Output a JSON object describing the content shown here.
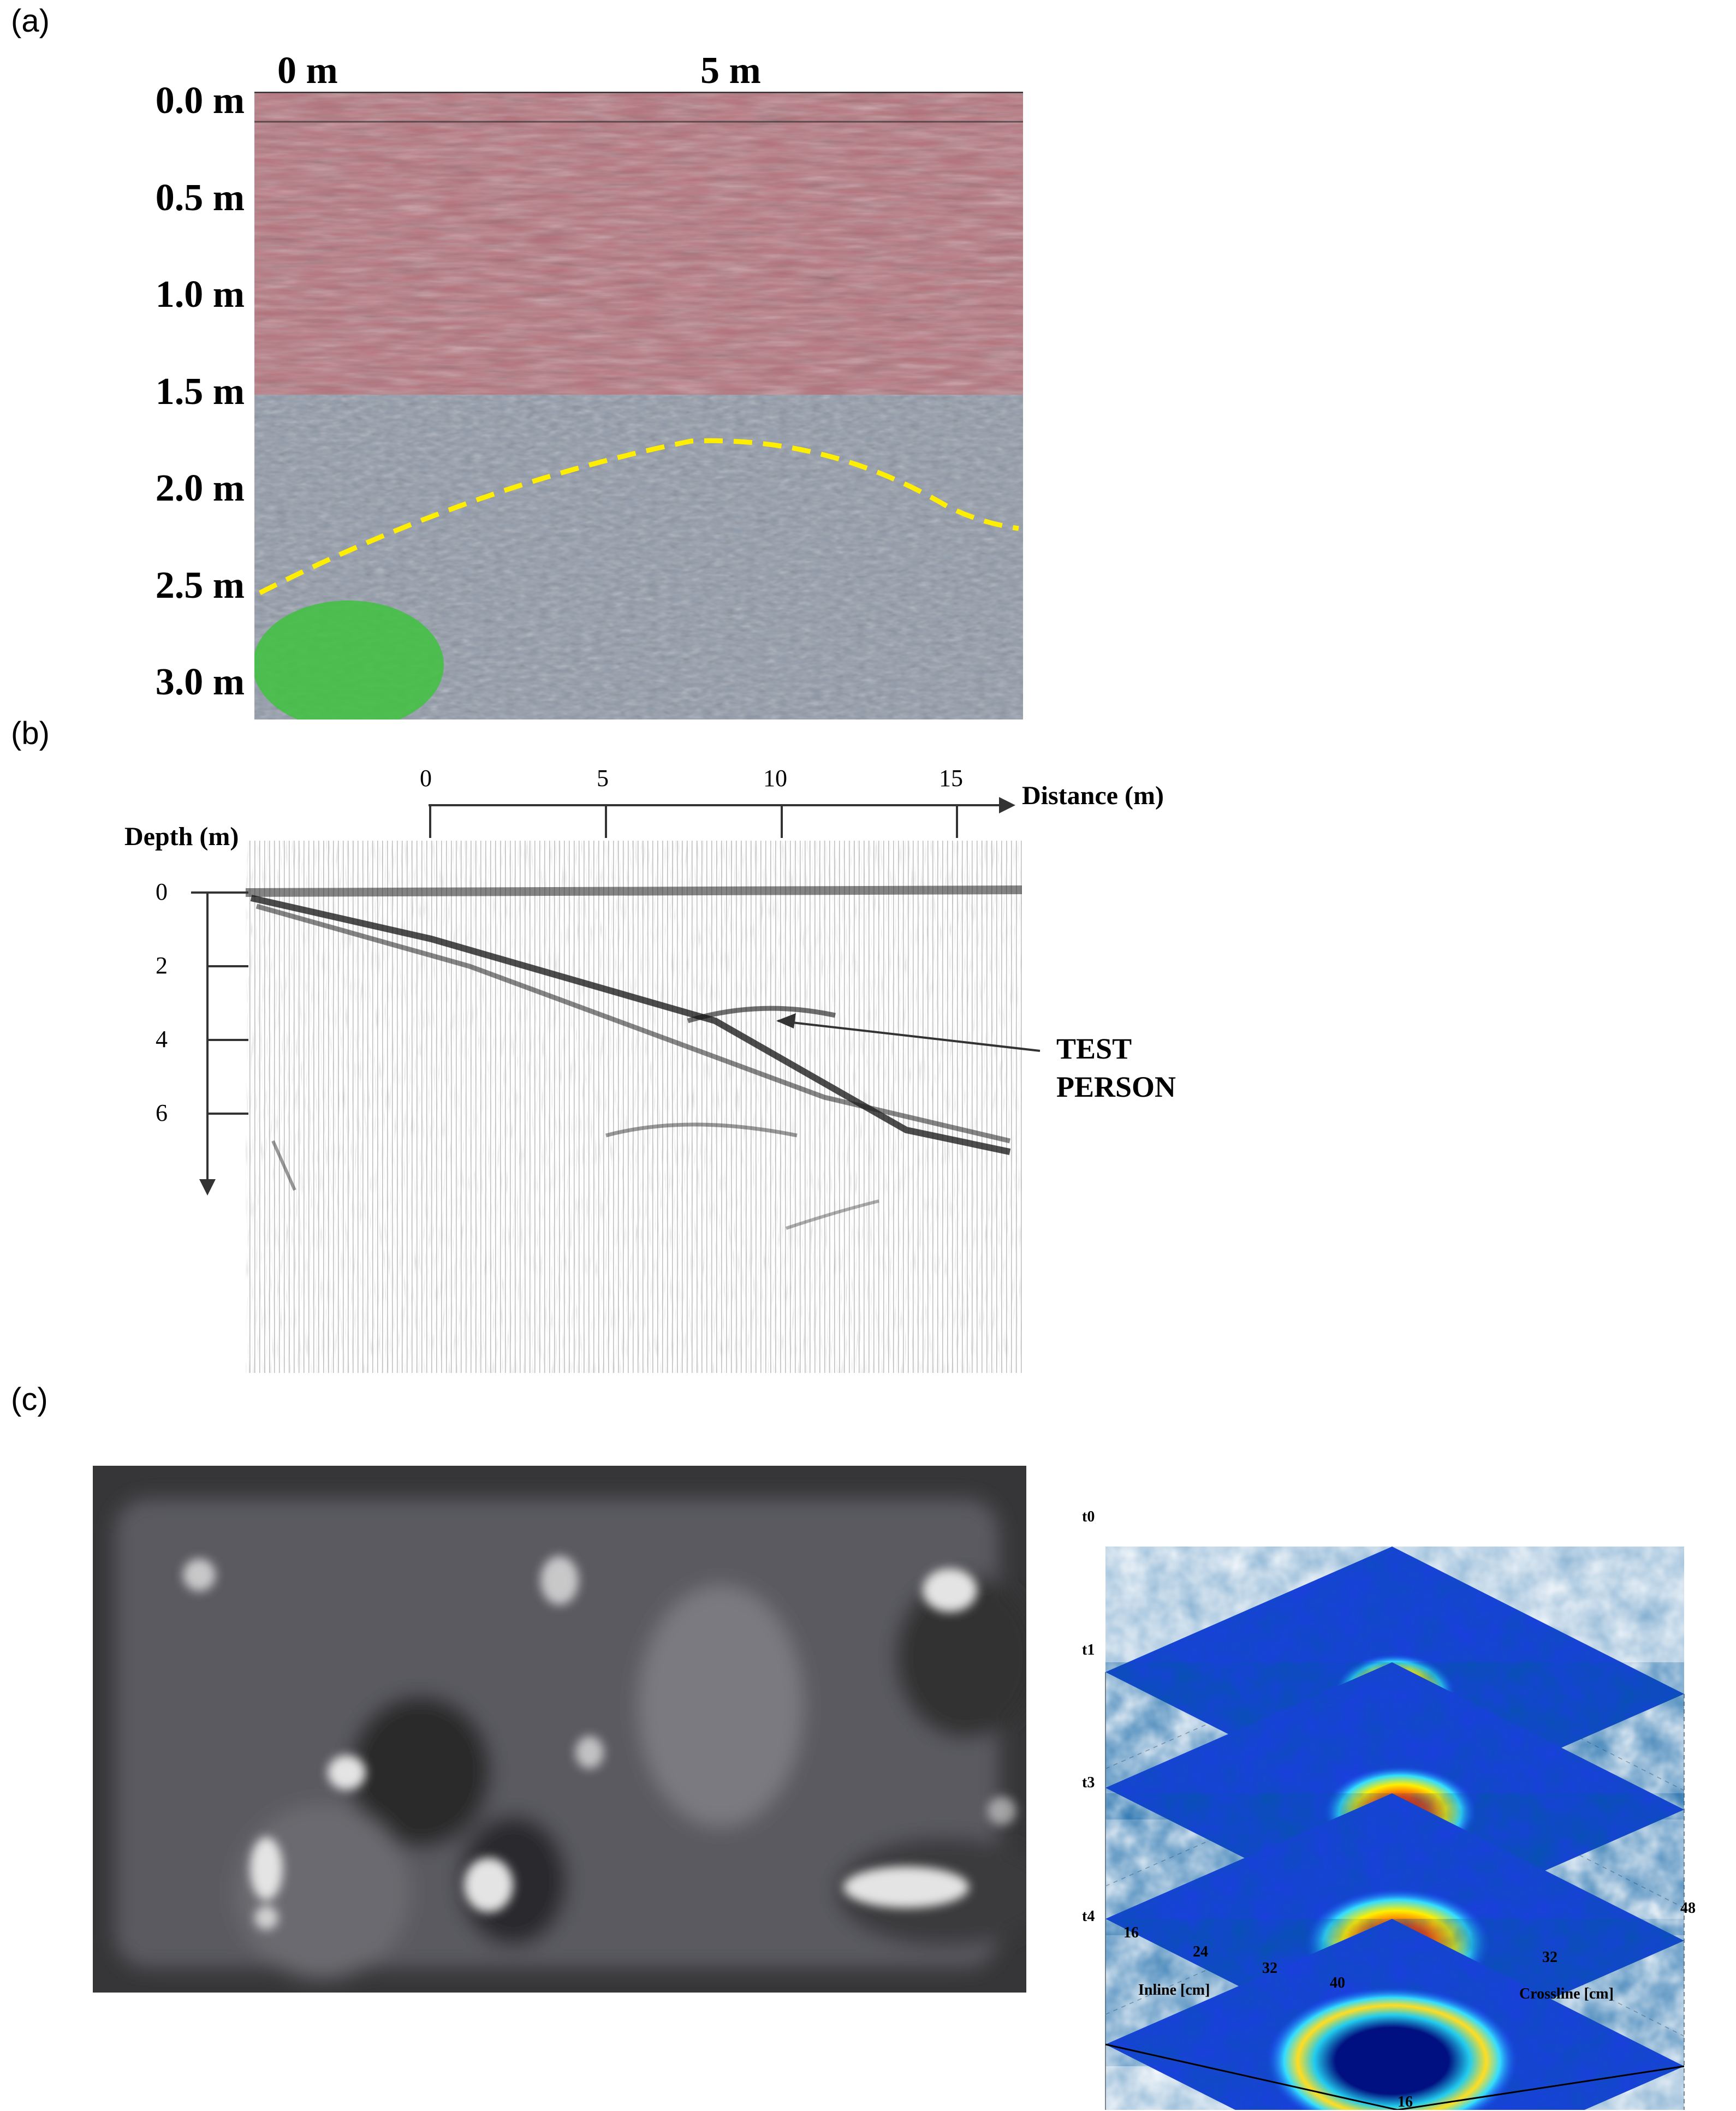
{
  "panels": {
    "a": {
      "label": "(a)",
      "x_ticks": [
        "0 m",
        "5 m"
      ],
      "depth_ticks": [
        "0.0 m",
        "0.5 m",
        "1.0 m",
        "1.5 m",
        "2.0 m",
        "2.5 m",
        "3.0 m"
      ],
      "colors": {
        "upper_zone": "#b5707a",
        "lower_zone": "#8f99a8",
        "interface": "#ffee00",
        "target": "#3fc23f"
      }
    },
    "b": {
      "label": "(b)",
      "distance_label": "Distance (m)",
      "distance_ticks": [
        "0",
        "5",
        "10",
        "15"
      ],
      "depth_label": "Depth (m)",
      "depth_ticks": [
        "0",
        "2",
        "4",
        "6"
      ],
      "annotation_line1": "TEST",
      "annotation_line2": "PERSON"
    },
    "c": {
      "label": "(c)",
      "slice_labels": [
        "t0",
        "t1",
        "t3",
        "t4"
      ],
      "inline_label": "Inline [cm]",
      "inline_ticks": [
        "16",
        "24",
        "32",
        "40"
      ],
      "crossline_label": "Crossline [cm]",
      "crossline_ticks": [
        "16",
        "32",
        "48"
      ]
    }
  }
}
